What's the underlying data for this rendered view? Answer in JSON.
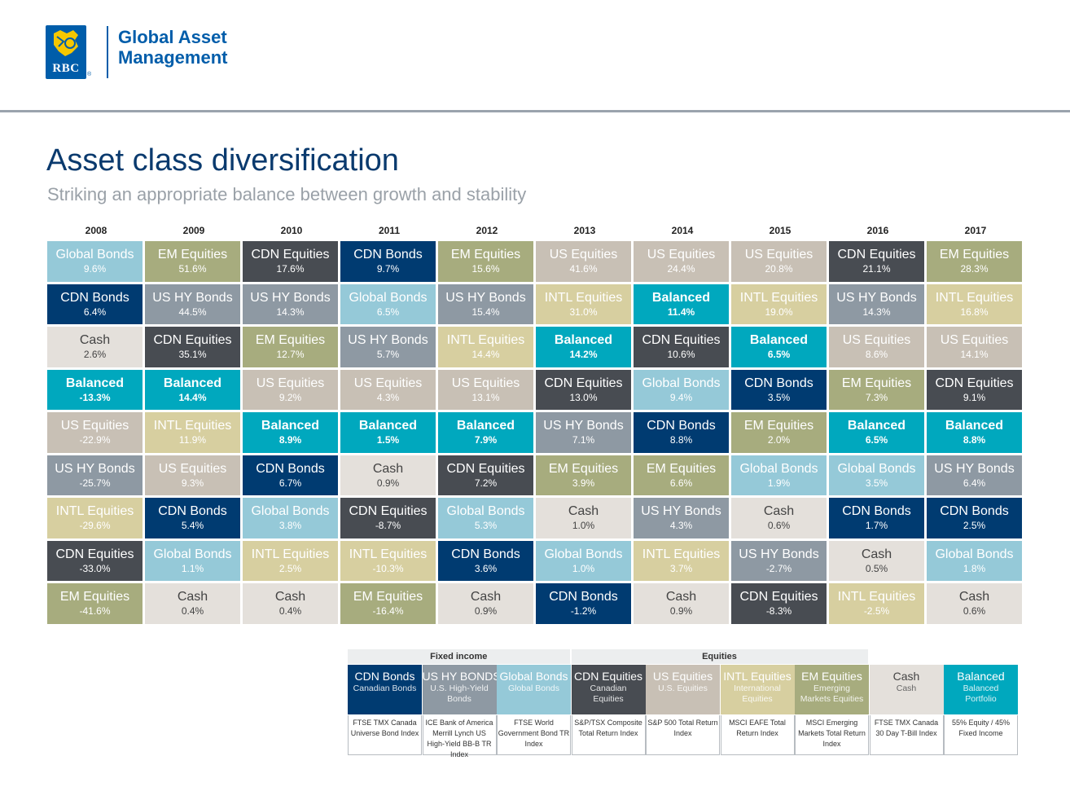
{
  "header": {
    "logo_text": "RBC",
    "logo_reg": "®",
    "brand_line1": "Global Asset",
    "brand_line2": "Management"
  },
  "title": "Asset class diversification",
  "subtitle": "Striking an appropriate balance between growth and stability",
  "colors": {
    "CDN Bonds": {
      "bg": "#003b71",
      "fg": "#ffffff"
    },
    "US HY Bonds": {
      "bg": "#8e99a3",
      "fg": "#ffffff"
    },
    "Global Bonds": {
      "bg": "#95c9d8",
      "fg": "#ffffff"
    },
    "CDN Equities": {
      "bg": "#484c52",
      "fg": "#ffffff"
    },
    "US Equities": {
      "bg": "#c8c0b5",
      "fg": "#ffffff"
    },
    "INTL Equities": {
      "bg": "#d7cfa0",
      "fg": "#ffffff"
    },
    "EM Equities": {
      "bg": "#a7ac7e",
      "fg": "#ffffff"
    },
    "Cash": {
      "bg": "#e4e0db",
      "fg": "#444444"
    },
    "Balanced": {
      "bg": "#00a8be",
      "fg": "#ffffff"
    }
  },
  "chart_data": {
    "type": "table",
    "title": "Asset class diversification",
    "years": [
      "2008",
      "2009",
      "2010",
      "2011",
      "2012",
      "2013",
      "2014",
      "2015",
      "2016",
      "2017"
    ],
    "columns": [
      [
        [
          "Global Bonds",
          "9.6%"
        ],
        [
          "CDN Bonds",
          "6.4%"
        ],
        [
          "Cash",
          "2.6%"
        ],
        [
          "Balanced",
          "-13.3%"
        ],
        [
          "US Equities",
          "-22.9%"
        ],
        [
          "US HY Bonds",
          "-25.7%"
        ],
        [
          "INTL Equities",
          "-29.6%"
        ],
        [
          "CDN Equities",
          "-33.0%"
        ],
        [
          "EM Equities",
          "-41.6%"
        ]
      ],
      [
        [
          "EM Equities",
          "51.6%"
        ],
        [
          "US HY Bonds",
          "44.5%"
        ],
        [
          "CDN Equities",
          "35.1%"
        ],
        [
          "Balanced",
          "14.4%"
        ],
        [
          "INTL Equities",
          "11.9%"
        ],
        [
          "US Equities",
          "9.3%"
        ],
        [
          "CDN Bonds",
          "5.4%"
        ],
        [
          "Global Bonds",
          "1.1%"
        ],
        [
          "Cash",
          "0.4%"
        ]
      ],
      [
        [
          "CDN Equities",
          "17.6%"
        ],
        [
          "US HY Bonds",
          "14.3%"
        ],
        [
          "EM Equities",
          "12.7%"
        ],
        [
          "US Equities",
          "9.2%"
        ],
        [
          "Balanced",
          "8.9%"
        ],
        [
          "CDN Bonds",
          "6.7%"
        ],
        [
          "Global Bonds",
          "3.8%"
        ],
        [
          "INTL Equities",
          "2.5%"
        ],
        [
          "Cash",
          "0.4%"
        ]
      ],
      [
        [
          "CDN Bonds",
          "9.7%"
        ],
        [
          "Global Bonds",
          "6.5%"
        ],
        [
          "US HY Bonds",
          "5.7%"
        ],
        [
          "US Equities",
          "4.3%"
        ],
        [
          "Balanced",
          "1.5%"
        ],
        [
          "Cash",
          "0.9%"
        ],
        [
          "CDN Equities",
          "-8.7%"
        ],
        [
          "INTL Equities",
          "-10.3%"
        ],
        [
          "EM Equities",
          "-16.4%"
        ]
      ],
      [
        [
          "EM Equities",
          "15.6%"
        ],
        [
          "US HY Bonds",
          "15.4%"
        ],
        [
          "INTL Equities",
          "14.4%"
        ],
        [
          "US Equities",
          "13.1%"
        ],
        [
          "Balanced",
          "7.9%"
        ],
        [
          "CDN Equities",
          "7.2%"
        ],
        [
          "Global Bonds",
          "5.3%"
        ],
        [
          "CDN Bonds",
          "3.6%"
        ],
        [
          "Cash",
          "0.9%"
        ]
      ],
      [
        [
          "US Equities",
          "41.6%"
        ],
        [
          "INTL Equities",
          "31.0%"
        ],
        [
          "Balanced",
          "14.2%"
        ],
        [
          "CDN Equities",
          "13.0%"
        ],
        [
          "US HY Bonds",
          "7.1%"
        ],
        [
          "EM Equities",
          "3.9%"
        ],
        [
          "Cash",
          "1.0%"
        ],
        [
          "Global Bonds",
          "1.0%"
        ],
        [
          "CDN Bonds",
          "-1.2%"
        ]
      ],
      [
        [
          "US Equities",
          "24.4%"
        ],
        [
          "Balanced",
          "11.4%"
        ],
        [
          "CDN Equities",
          "10.6%"
        ],
        [
          "Global Bonds",
          "9.4%"
        ],
        [
          "CDN Bonds",
          "8.8%"
        ],
        [
          "EM Equities",
          "6.6%"
        ],
        [
          "US HY Bonds",
          "4.3%"
        ],
        [
          "INTL Equities",
          "3.7%"
        ],
        [
          "Cash",
          "0.9%"
        ]
      ],
      [
        [
          "US Equities",
          "20.8%"
        ],
        [
          "INTL Equities",
          "19.0%"
        ],
        [
          "Balanced",
          "6.5%"
        ],
        [
          "CDN Bonds",
          "3.5%"
        ],
        [
          "EM Equities",
          "2.0%"
        ],
        [
          "Global Bonds",
          "1.9%"
        ],
        [
          "Cash",
          "0.6%"
        ],
        [
          "US HY Bonds",
          "-2.7%"
        ],
        [
          "CDN Equities",
          "-8.3%"
        ]
      ],
      [
        [
          "CDN Equities",
          "21.1%"
        ],
        [
          "US HY Bonds",
          "14.3%"
        ],
        [
          "US Equities",
          "8.6%"
        ],
        [
          "EM Equities",
          "7.3%"
        ],
        [
          "Balanced",
          "6.5%"
        ],
        [
          "Global Bonds",
          "3.5%"
        ],
        [
          "CDN Bonds",
          "1.7%"
        ],
        [
          "Cash",
          "0.5%"
        ],
        [
          "INTL Equities",
          "-2.5%"
        ]
      ],
      [
        [
          "EM Equities",
          "28.3%"
        ],
        [
          "INTL Equities",
          "16.8%"
        ],
        [
          "US Equities",
          "14.1%"
        ],
        [
          "CDN Equities",
          "9.1%"
        ],
        [
          "Balanced",
          "8.8%"
        ],
        [
          "US HY Bonds",
          "6.4%"
        ],
        [
          "CDN Bonds",
          "2.5%"
        ],
        [
          "Global Bonds",
          "1.8%"
        ],
        [
          "Cash",
          "0.6%"
        ]
      ]
    ]
  },
  "legend": {
    "groups": [
      {
        "label": "Fixed income",
        "span": 3
      },
      {
        "label": "Equities",
        "span": 4
      }
    ],
    "items": [
      {
        "key": "CDN Bonds",
        "title": "CDN Bonds",
        "sub": "Canadian Bonds",
        "index": "FTSE TMX Canada Universe Bond Index"
      },
      {
        "key": "US HY Bonds",
        "title": "US HY BONDS",
        "sub": "U.S. High-Yield Bonds",
        "index": "ICE Bank of America Merrill Lynch US High-Yield BB-B TR Index"
      },
      {
        "key": "Global Bonds",
        "title": "Global Bonds",
        "sub": "Global Bonds",
        "index": "FTSE World Government Bond TR Index"
      },
      {
        "key": "CDN Equities",
        "title": "CDN Equities",
        "sub": "Canadian Equities",
        "index": "S&P/TSX Composite Total Return Index"
      },
      {
        "key": "US Equities",
        "title": "US Equities",
        "sub": "U.S. Equities",
        "index": "S&P 500 Total Return Index"
      },
      {
        "key": "INTL Equities",
        "title": "INTL Equities",
        "sub": "International Equities",
        "index": "MSCI EAFE Total Return Index"
      },
      {
        "key": "EM Equities",
        "title": "EM Equities",
        "sub": "Emerging Markets Equities",
        "index": "MSCI Emerging Markets Total Return Index"
      },
      {
        "key": "Cash",
        "title": "Cash",
        "sub": "Cash",
        "index": "FTSE TMX Canada 30 Day T-Bill Index"
      },
      {
        "key": "Balanced",
        "title": "Balanced",
        "sub": "Balanced Portfolio",
        "index": "55% Equity / 45% Fixed Income"
      }
    ]
  }
}
